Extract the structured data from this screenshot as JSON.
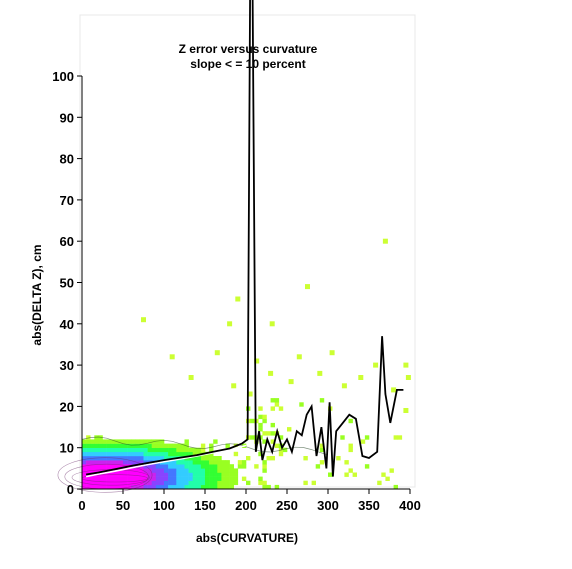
{
  "chart_data": {
    "type": "heatmap",
    "title": "Z error versus curvature",
    "subtitle": "slope < = 10 percent",
    "xlabel": "abs(CURVATURE)",
    "ylabel": "abs(DELTA Z), cm",
    "xlim": [
      0,
      400
    ],
    "ylim": [
      0,
      100
    ],
    "x_ticks": [
      "0",
      "50",
      "100",
      "150",
      "200",
      "250",
      "300",
      "350",
      "400"
    ],
    "y_ticks": [
      "0",
      "10",
      "20",
      "30",
      "40",
      "50",
      "60",
      "70",
      "80",
      "90",
      "100"
    ],
    "density_colors": [
      "#ff00ff",
      "#cc22ee",
      "#8844ff",
      "#4477ff",
      "#33ccff",
      "#22ffaa",
      "#33ff33",
      "#99ff22",
      "#ccff33"
    ],
    "mean_line": {
      "x": [
        5,
        20,
        40,
        60,
        80,
        100,
        120,
        140,
        160,
        180,
        195,
        202,
        205,
        208,
        212,
        216,
        220,
        226,
        232,
        238,
        244,
        250,
        256,
        262,
        268,
        274,
        280,
        286,
        292,
        298,
        302,
        306,
        310,
        318,
        326,
        334,
        342,
        350,
        360,
        366,
        370,
        376,
        384,
        392
      ],
      "y": [
        3.5,
        4,
        4.8,
        5.6,
        6.3,
        7,
        7.6,
        8.2,
        9,
        9.8,
        11,
        12,
        120,
        120,
        9,
        14,
        7,
        12,
        9,
        14,
        10,
        12,
        9,
        14,
        13,
        18,
        20,
        8,
        15,
        5,
        21,
        3,
        14,
        16,
        18,
        17,
        8,
        7.5,
        9,
        37,
        23,
        16,
        24,
        24
      ]
    },
    "white_curve": {
      "x": [
        5,
        20,
        40,
        60,
        80,
        100,
        120,
        140,
        160,
        180,
        200
      ],
      "y": [
        3,
        3.6,
        4.3,
        5.1,
        5.9,
        6.6,
        7.3,
        8,
        8.8,
        9.6,
        10.5
      ]
    },
    "outliers": [
      [
        75,
        41
      ],
      [
        110,
        32
      ],
      [
        133,
        27
      ],
      [
        190,
        46
      ],
      [
        165,
        33
      ],
      [
        180,
        40
      ],
      [
        205,
        23
      ],
      [
        213,
        31
      ],
      [
        232,
        40
      ],
      [
        265,
        32
      ],
      [
        275,
        49
      ],
      [
        305,
        33
      ],
      [
        358,
        30
      ],
      [
        370,
        60
      ],
      [
        395,
        30
      ],
      [
        398,
        27
      ],
      [
        185,
        25
      ],
      [
        230,
        28
      ],
      [
        255,
        26
      ],
      [
        290,
        28
      ],
      [
        320,
        25
      ],
      [
        340,
        27
      ],
      [
        380,
        24
      ],
      [
        395,
        19
      ]
    ]
  }
}
